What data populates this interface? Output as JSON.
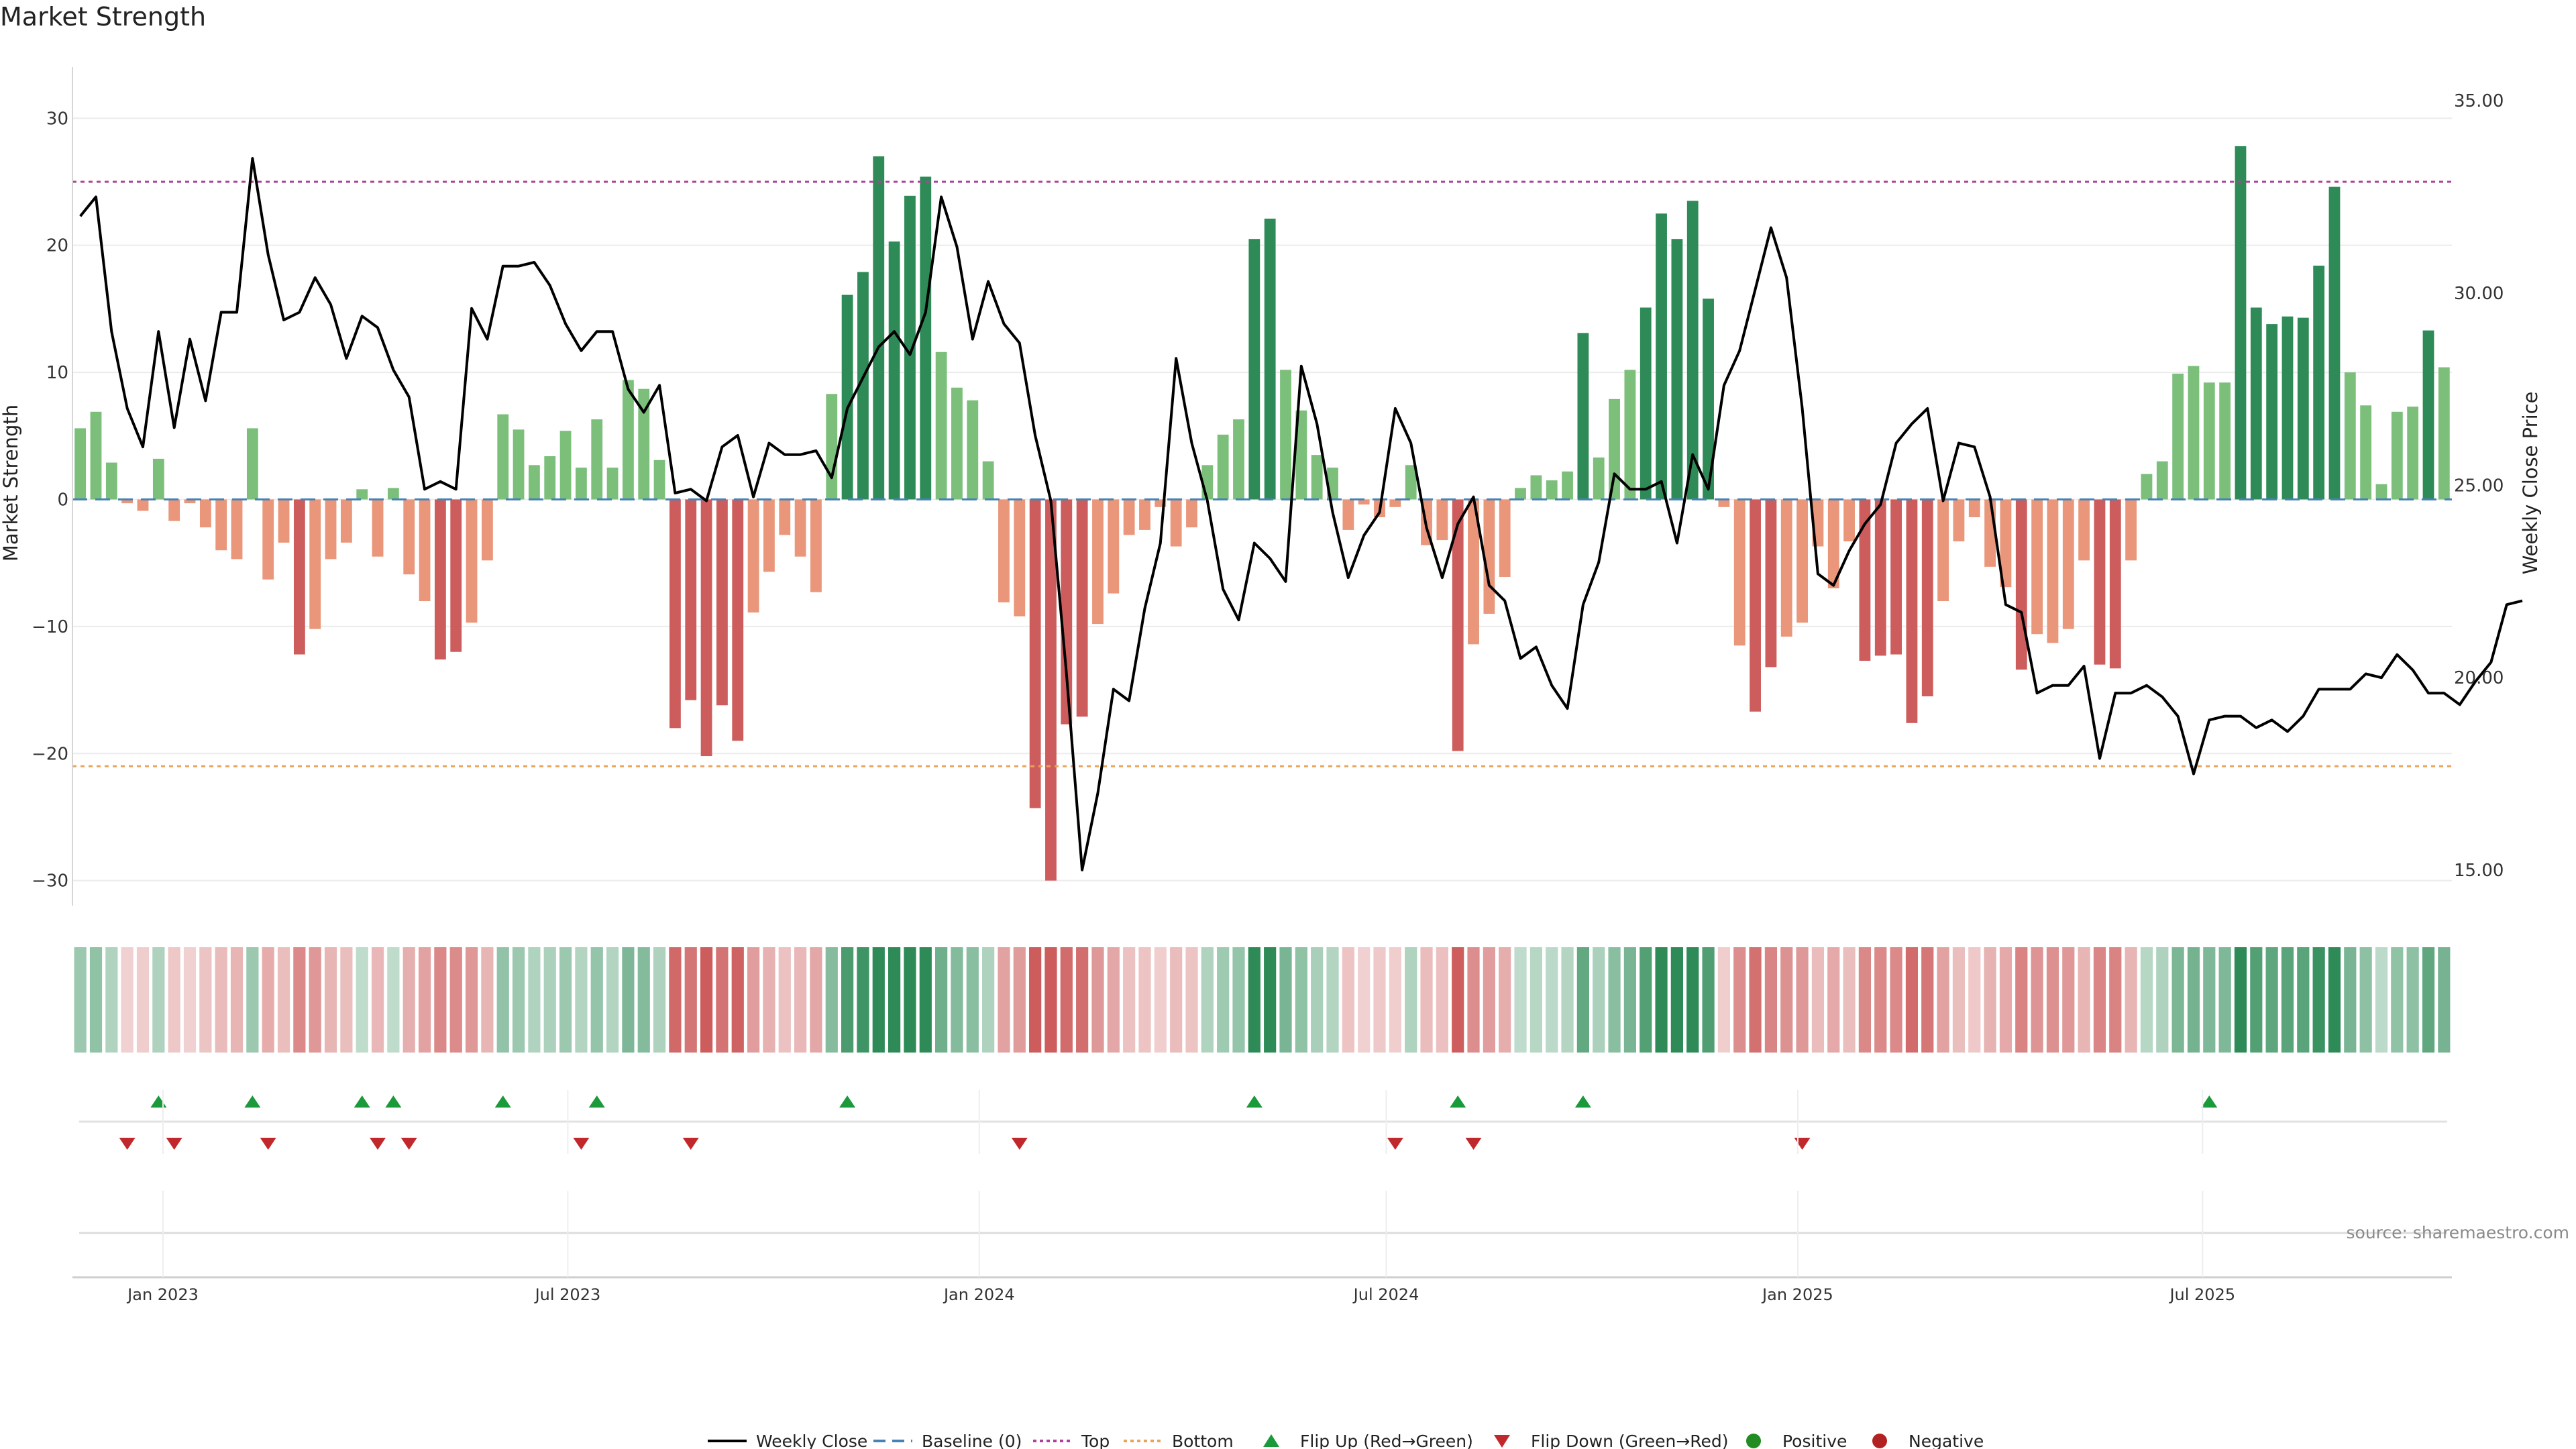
{
  "chart_data": {
    "type": "bar",
    "title": "Market Strength",
    "ylabel": "Market Strength",
    "y2label": "Weekly Close Price",
    "source": "source: sharemaestro.com",
    "ylim": [
      -32.5,
      33.5
    ],
    "y2lim": [
      13.9,
      35.7
    ],
    "yticks": [
      30,
      20,
      10,
      0,
      -10,
      -20,
      -30
    ],
    "ytick_labels": [
      "30",
      "20",
      "10",
      "0",
      "−10",
      "−20",
      "−30"
    ],
    "y2ticks": [
      35,
      30,
      25,
      20,
      15
    ],
    "y2tick_labels": [
      "35.00",
      "30.00",
      "25.00",
      "20.00",
      "15.00"
    ],
    "x_start": "2022-11-25",
    "week_days": 7,
    "xticks": [
      {
        "date": "2023-01-01",
        "label": "Jan 2023"
      },
      {
        "date": "2023-07-01",
        "label": "Jul 2023"
      },
      {
        "date": "2024-01-01",
        "label": "Jan 2024"
      },
      {
        "date": "2024-07-01",
        "label": "Jul 2024"
      },
      {
        "date": "2025-01-01",
        "label": "Jan 2025"
      },
      {
        "date": "2025-07-01",
        "label": "Jul 2025"
      }
    ],
    "top": 25,
    "bottom": -21,
    "strength": [
      5.6,
      6.9,
      2.9,
      -0.3,
      -0.9,
      3.2,
      -1.7,
      -0.3,
      -2.2,
      -4.0,
      -4.7,
      5.6,
      -6.3,
      -3.4,
      -12.2,
      -10.2,
      -4.7,
      -3.4,
      0.8,
      -4.5,
      0.9,
      -5.9,
      -8.0,
      -12.6,
      -12.0,
      -9.7,
      -4.8,
      6.7,
      5.5,
      2.7,
      3.4,
      5.4,
      2.5,
      6.3,
      2.5,
      9.4,
      8.7,
      3.1,
      -18.0,
      -15.8,
      -20.2,
      -16.2,
      -19.0,
      -8.9,
      -5.7,
      -2.8,
      -4.5,
      -7.3,
      8.3,
      16.1,
      17.9,
      27.0,
      20.3,
      23.9,
      25.4,
      11.6,
      8.8,
      7.8,
      3.0,
      -8.1,
      -9.2,
      -24.3,
      -30.0,
      -17.7,
      -17.1,
      -9.8,
      -7.4,
      -2.8,
      -2.4,
      -0.6,
      -3.7,
      -2.2,
      2.7,
      5.1,
      6.3,
      20.5,
      22.1,
      10.2,
      7.0,
      3.5,
      2.5,
      -2.4,
      -0.4,
      -1.4,
      -0.6,
      2.7,
      -3.6,
      -3.2,
      -19.8,
      -11.4,
      -9.0,
      -6.1,
      0.9,
      1.9,
      1.5,
      2.2,
      13.1,
      3.3,
      7.9,
      10.2,
      15.1,
      22.5,
      20.5,
      23.5,
      15.8,
      -0.6,
      -11.5,
      -16.7,
      -13.2,
      -10.8,
      -9.7,
      -3.7,
      -7.0,
      -3.3,
      -12.7,
      -12.3,
      -12.2,
      -17.6,
      -15.5,
      -8.0,
      -3.3,
      -1.4,
      -5.3,
      -6.9,
      -13.4,
      -10.6,
      -11.3,
      -10.2,
      -4.8,
      -13.0,
      -13.3,
      -4.8,
      2.0,
      3.0,
      9.9,
      10.5,
      9.2,
      9.2,
      27.8,
      15.1,
      13.8,
      14.4,
      14.3,
      18.4,
      24.6,
      10.0,
      7.4,
      1.2,
      6.9,
      7.3,
      13.3,
      10.4
    ],
    "close": [
      32.0,
      32.5,
      29.0,
      27.0,
      26.0,
      29.0,
      26.5,
      28.8,
      27.2,
      29.5,
      29.5,
      33.5,
      31.0,
      29.3,
      29.5,
      30.4,
      29.7,
      28.3,
      29.4,
      29.1,
      28.0,
      27.3,
      24.9,
      25.1,
      24.9,
      29.6,
      28.8,
      30.7,
      30.7,
      30.8,
      30.2,
      29.2,
      28.5,
      29.0,
      29.0,
      27.5,
      26.9,
      27.6,
      24.8,
      24.9,
      24.6,
      26.0,
      26.3,
      24.7,
      26.1,
      25.8,
      25.8,
      25.9,
      25.2,
      27.0,
      27.8,
      28.6,
      29.0,
      28.4,
      29.5,
      32.5,
      31.2,
      28.8,
      30.3,
      29.2,
      28.7,
      26.3,
      24.6,
      20.1,
      15.0,
      17.0,
      19.7,
      19.4,
      21.8,
      23.5,
      28.3,
      26.1,
      24.6,
      22.3,
      21.5,
      23.5,
      23.1,
      22.5,
      28.1,
      26.6,
      24.3,
      22.6,
      23.7,
      24.3,
      27.0,
      26.1,
      23.9,
      22.6,
      24.0,
      24.7,
      22.4,
      22.0,
      20.5,
      20.8,
      19.8,
      19.2,
      21.9,
      23.0,
      25.3,
      24.9,
      24.9,
      25.1,
      23.5,
      25.8,
      24.9,
      27.6,
      28.5,
      30.1,
      31.7,
      30.4,
      27.0,
      22.7,
      22.4,
      23.3,
      24.0,
      24.5,
      26.1,
      26.6,
      27.0,
      24.6,
      26.1,
      26.0,
      24.7,
      21.9,
      21.7,
      19.6,
      19.8,
      19.8,
      20.3,
      17.9,
      19.6,
      19.6,
      19.8,
      19.5,
      19.0,
      17.5,
      18.9,
      19.0,
      19.0,
      18.7,
      18.9,
      18.6,
      19.0,
      19.7,
      19.7,
      19.7,
      20.1,
      20.0,
      20.6,
      20.2,
      19.6,
      19.6,
      19.3,
      19.9,
      20.4,
      21.9,
      22.0
    ],
    "flip_up_indices": [
      5,
      11,
      18,
      20,
      27,
      33,
      49,
      75,
      88,
      96,
      136
    ],
    "flip_down_indices": [
      3,
      6,
      12,
      19,
      21,
      32,
      39,
      60,
      84,
      89,
      110
    ],
    "colors": {
      "strong_positive": "#2e8b57",
      "weak_positive": "#7bbf7b",
      "strong_negative": "#cd5c5c",
      "weak_negative": "#e9967a",
      "line": "#000000",
      "baseline": "#4682b4",
      "top": "#b0409a",
      "bottom": "#e9a35a",
      "flip_up": "#1a9a3a",
      "flip_down": "#c0282c",
      "positive_marker": "#228b22",
      "negative_marker": "#b22222",
      "grid": "#ececec"
    },
    "legend": {
      "position": "bottom-center",
      "items": [
        {
          "key": "line",
          "label": "Weekly Close"
        },
        {
          "key": "baseline",
          "label": "Baseline (0)"
        },
        {
          "key": "top",
          "label": "Top"
        },
        {
          "key": "bottom",
          "label": "Bottom"
        },
        {
          "key": "flip_up",
          "label": "Flip Up (Red→Green)"
        },
        {
          "key": "flip_down",
          "label": "Flip Down (Green→Red)"
        },
        {
          "key": "positive",
          "label": "Positive"
        },
        {
          "key": "negative",
          "label": "Negative"
        }
      ]
    }
  }
}
